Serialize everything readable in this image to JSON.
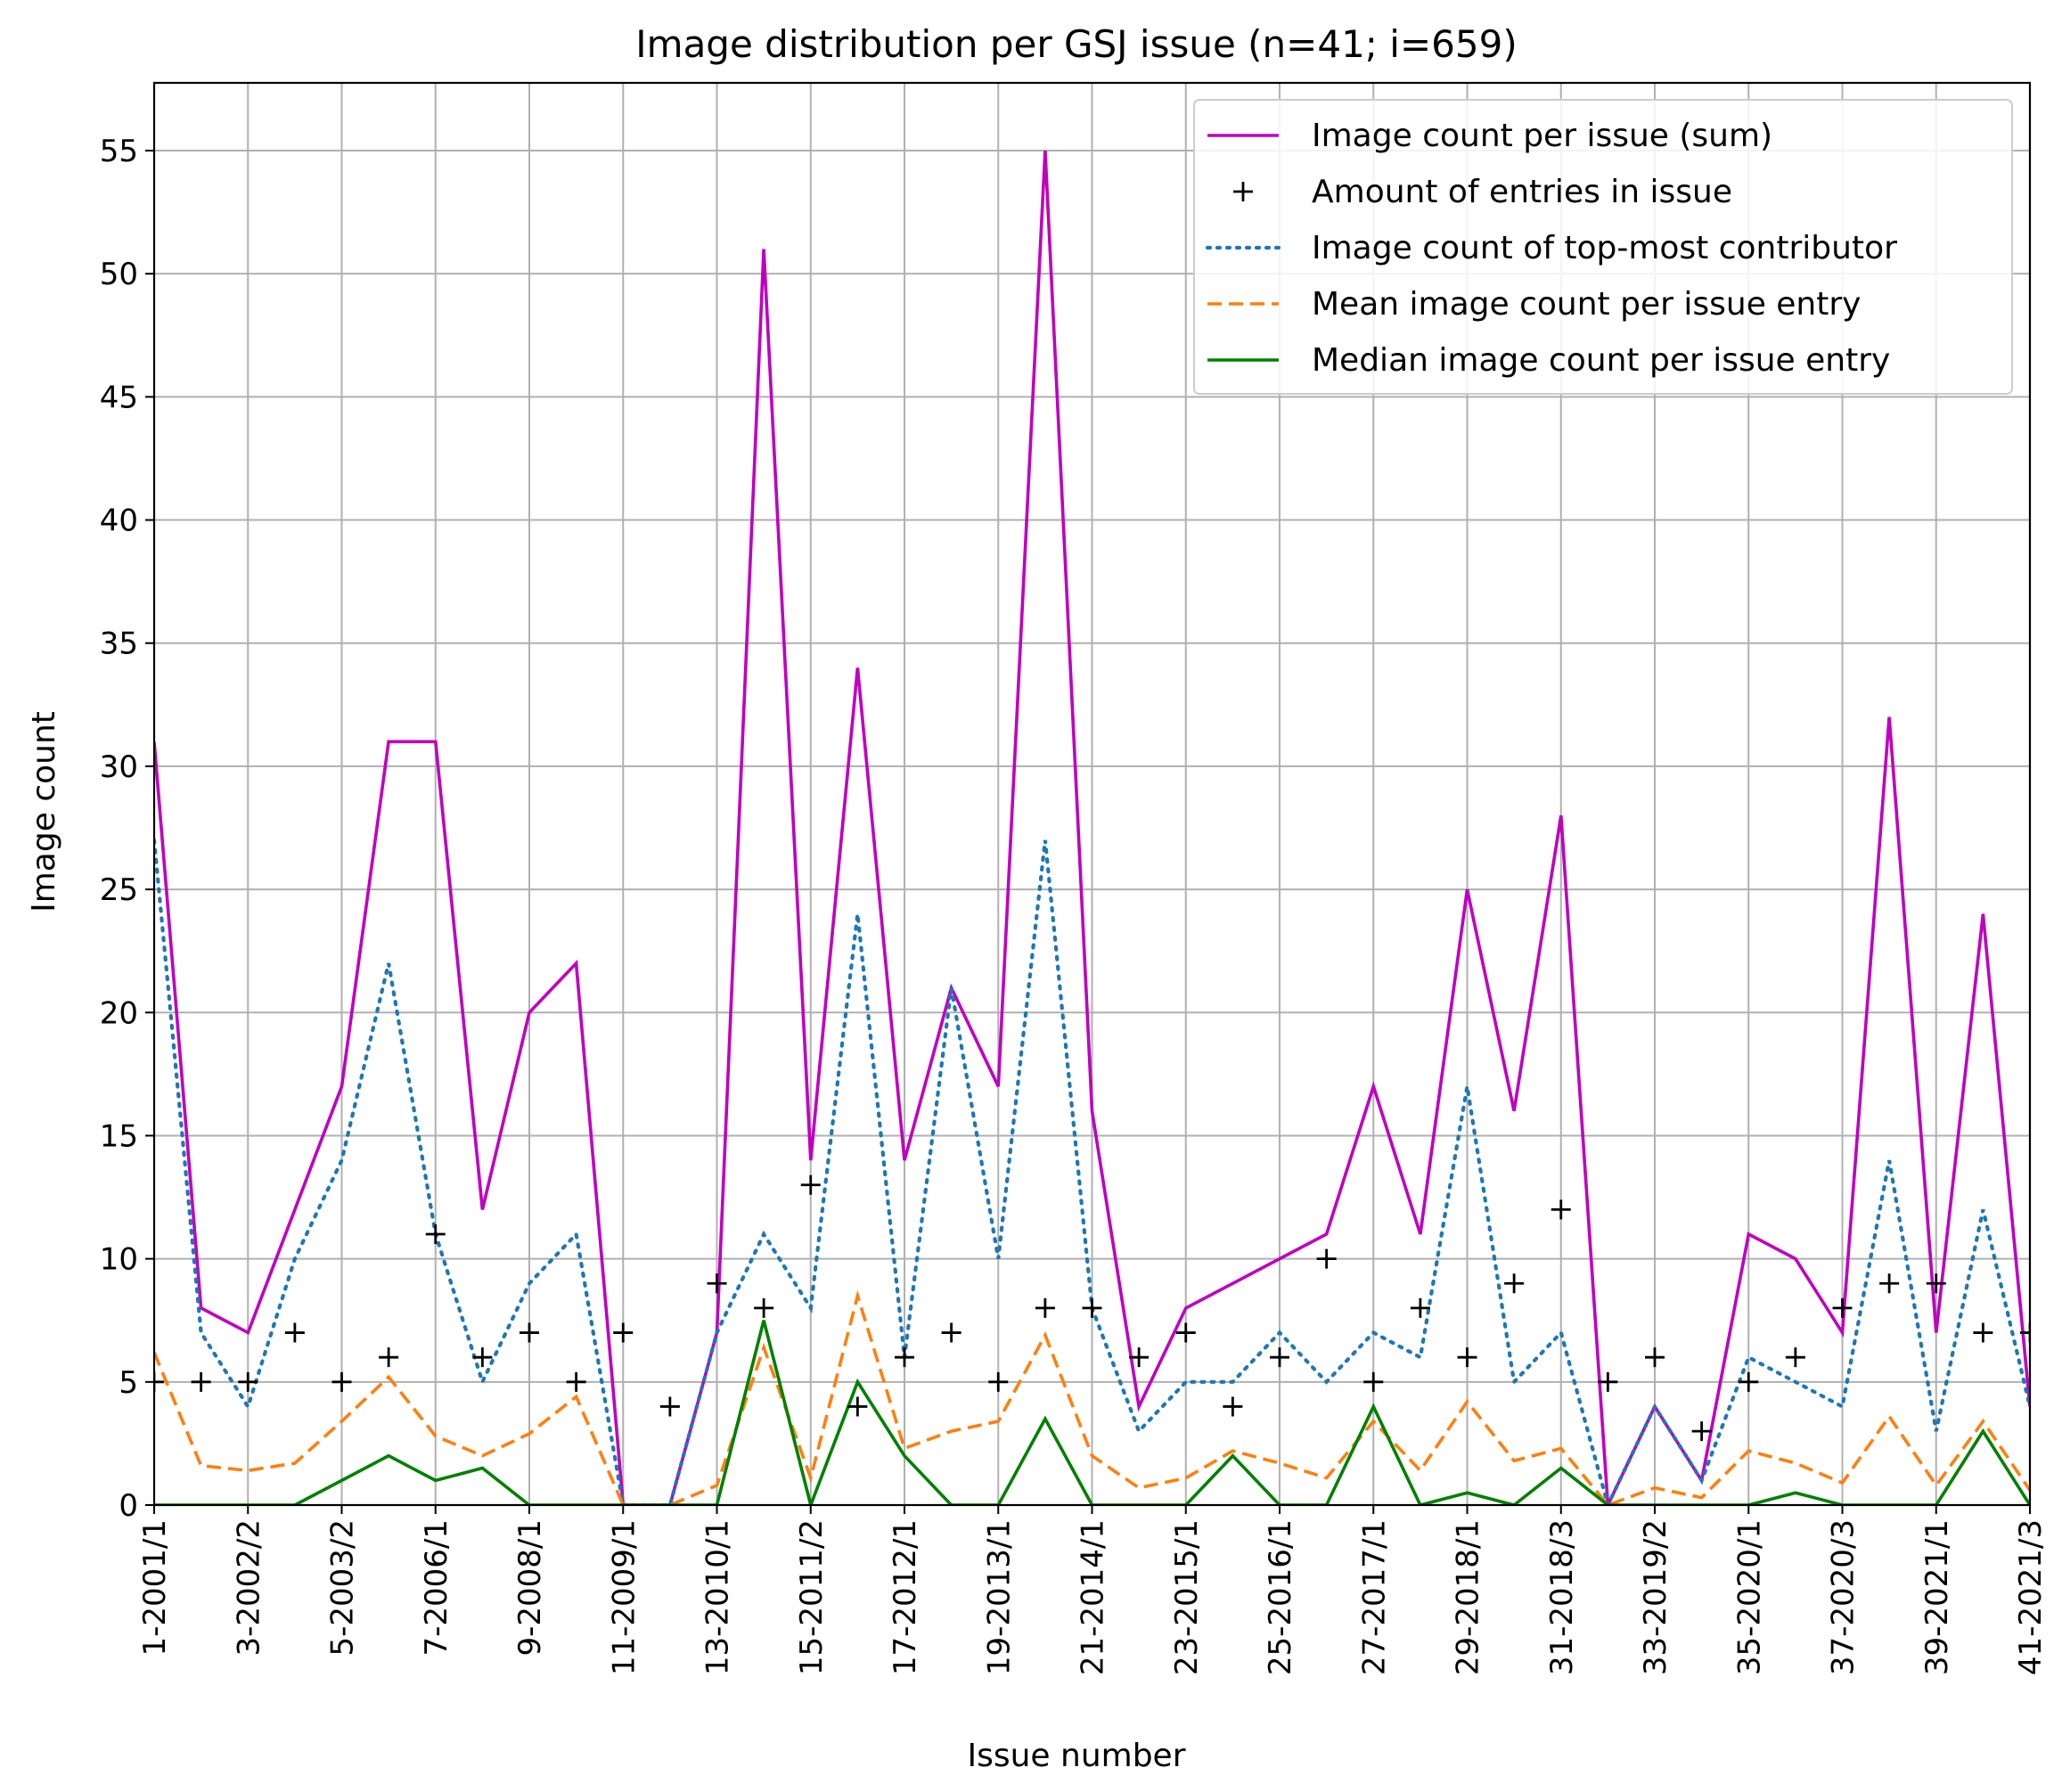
{
  "chart_data": {
    "type": "line",
    "title": "Image distribution per GSJ issue (n=41; i=659)",
    "xlabel": "Issue number",
    "ylabel": "Image count",
    "ylim": [
      0,
      57.75
    ],
    "y_ticks": [
      0,
      5,
      10,
      15,
      20,
      25,
      30,
      35,
      40,
      45,
      50,
      55
    ],
    "x_tick_labels": [
      "1-2001/1",
      "3-2002/2",
      "5-2003/2",
      "7-2006/1",
      "9-2008/1",
      "11-2009/1",
      "13-2010/1",
      "15-2011/2",
      "17-2012/1",
      "19-2013/1",
      "21-2014/1",
      "23-2015/1",
      "25-2016/1",
      "27-2017/1",
      "29-2018/1",
      "31-2018/3",
      "33-2019/2",
      "35-2020/1",
      "37-2020/3",
      "39-2021/1",
      "41-2021/3"
    ],
    "x": [
      1,
      2,
      3,
      4,
      5,
      6,
      7,
      8,
      9,
      10,
      11,
      12,
      13,
      14,
      15,
      16,
      17,
      18,
      19,
      20,
      21,
      22,
      23,
      24,
      25,
      26,
      27,
      28,
      29,
      30,
      31,
      32,
      33,
      34,
      35,
      36,
      37,
      38,
      39,
      40,
      41
    ],
    "grid": true,
    "legend_position": "top-right",
    "series": [
      {
        "name": "Image count per issue (sum)",
        "style": "solid",
        "color": "#bf00bf",
        "values": [
          31,
          8,
          7,
          12,
          17,
          31,
          31,
          12,
          20,
          22,
          0,
          0,
          7,
          51,
          14,
          34,
          14,
          21,
          17,
          55,
          16,
          4,
          8,
          9,
          10,
          11,
          17,
          11,
          25,
          16,
          28,
          0,
          4,
          1,
          11,
          10,
          7,
          32,
          7,
          24,
          4
        ]
      },
      {
        "name": "Amount of entries in issue",
        "style": "plus-markers",
        "color": "#000000",
        "values": [
          5,
          5,
          5,
          7,
          5,
          6,
          11,
          6,
          7,
          5,
          7,
          4,
          9,
          8,
          13,
          4,
          6,
          7,
          5,
          8,
          8,
          6,
          7,
          4,
          6,
          10,
          5,
          8,
          6,
          9,
          12,
          5,
          6,
          3,
          5,
          6,
          8,
          9,
          9,
          7,
          7
        ]
      },
      {
        "name": "Image count of top-most contributor",
        "style": "dotted",
        "color": "#1f77b4",
        "values": [
          27,
          7,
          4,
          10,
          14,
          22,
          11,
          5,
          9,
          11,
          0,
          0,
          7,
          11,
          8,
          24,
          6,
          21,
          10,
          27,
          8,
          3,
          5,
          5,
          7,
          5,
          7,
          6,
          17,
          5,
          7,
          0,
          4,
          1,
          6,
          5,
          4,
          14,
          3,
          12,
          4
        ]
      },
      {
        "name": "Mean image count per issue entry",
        "style": "dashed",
        "color": "#ff7f0e",
        "values": [
          6.2,
          1.6,
          1.4,
          1.7,
          3.4,
          5.2,
          2.8,
          2.0,
          2.9,
          4.4,
          0,
          0,
          0.8,
          6.4,
          1.1,
          8.5,
          2.3,
          3.0,
          3.4,
          6.9,
          2.0,
          0.7,
          1.1,
          2.2,
          1.7,
          1.1,
          3.4,
          1.4,
          4.2,
          1.8,
          2.3,
          0,
          0.7,
          0.3,
          2.2,
          1.7,
          0.9,
          3.6,
          0.8,
          3.4,
          0.6
        ]
      },
      {
        "name": "Median image count per issue entry",
        "style": "solid",
        "color": "#008000",
        "values": [
          0,
          0,
          0,
          0,
          1,
          2,
          1,
          1.5,
          0,
          0,
          0,
          0,
          0,
          7.5,
          0,
          5,
          2,
          0,
          0,
          3.5,
          0,
          0,
          0,
          2,
          0,
          0,
          4,
          0,
          0.5,
          0,
          1.5,
          0,
          0,
          0,
          0,
          0.5,
          0,
          0,
          0,
          3,
          0
        ]
      }
    ]
  }
}
